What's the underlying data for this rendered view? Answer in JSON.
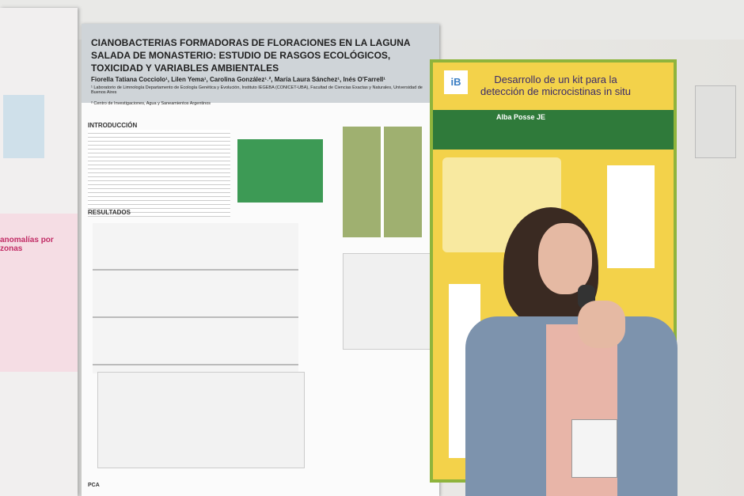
{
  "photo": {
    "left_poster": {
      "heading": "anomalías por zonas"
    },
    "center_poster": {
      "title": "CIANOBACTERIAS FORMADORAS DE FLORACIONES EN LA LAGUNA SALADA DE MONASTERIO: ESTUDIO DE RASGOS ECOLÓGICOS, TOXICIDAD Y VARIABLES AMBIENTALES",
      "authors": "Fiorella Tatiana Cocciolo¹, Lilen Yema¹, Carolina González¹˒², María Laura Sánchez¹, Inés O'Farrell¹",
      "affiliation": "¹ Laboratorio de Limnología Departamento de Ecología Genética y Evolución, Instituto IEGEBA (CONICET-UBA), Facultad de Ciencias Exactas y Naturales, Universidad de Buenos Aires",
      "affiliation_2": "² Centro de Investigaciones, Agua y Saneamientos Argentinos",
      "section_1": "INTRODUCCIÓN",
      "section_2": "RESULTADOS",
      "section_3": "PCA"
    },
    "right_poster": {
      "title": "Desarrollo de un kit para la detección de microcistinas in situ",
      "authors": "Alba Posse JE",
      "logo": "iB"
    }
  }
}
